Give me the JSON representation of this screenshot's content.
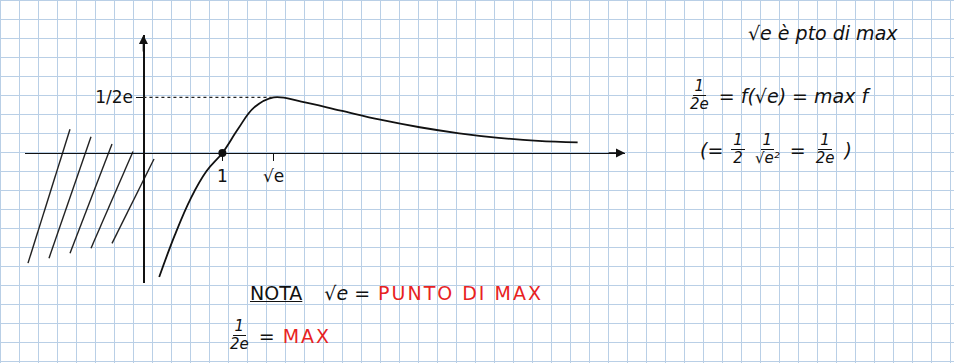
{
  "chart_data": {
    "type": "line",
    "x": [
      0.2,
      0.4,
      0.6,
      0.8,
      1,
      1.2,
      1.4,
      1.65,
      2,
      2.5,
      3,
      3.5,
      4,
      4.5,
      5,
      5.5
    ],
    "values": [
      -0.41,
      -0.27,
      -0.15,
      -0.06,
      0,
      0.08,
      0.15,
      0.184,
      0.17,
      0.14,
      0.11,
      0.085,
      0.065,
      0.05,
      0.04,
      0.035
    ],
    "color": "#111111",
    "xlim": [
      -1.5,
      6.1
    ],
    "ylim": [
      -0.43,
      0.39
    ],
    "xticks": [
      1,
      {
        "value": 1.65,
        "label": "√e"
      }
    ],
    "yticks": [
      {
        "value": 0.184,
        "label": "1/2e"
      }
    ],
    "marked_point": {
      "x": 1,
      "y": 0
    },
    "grid": false
  },
  "notes": [
    {
      "segments": [
        {
          "text": "√e è pto di max"
        }
      ]
    },
    {
      "segments": [
        {
          "num": "1",
          "den": "2e"
        },
        {
          "text": "= f(√e) = max f"
        }
      ]
    },
    {
      "segments": [
        {
          "text": "(="
        },
        {
          "num": "1",
          "den": "2"
        },
        {
          "num": "1",
          "den": "√e²"
        },
        {
          "text": "="
        },
        {
          "num": "1",
          "den": "2e"
        },
        {
          "text": ")"
        }
      ]
    },
    {
      "segments": [
        {
          "text": "NOTA",
          "underline": true
        },
        {
          "text": "√e ="
        },
        {
          "text": "PUNTO DI MAX",
          "color": "#e8231f"
        }
      ]
    },
    {
      "segments": [
        {
          "num": "1",
          "den": "2e"
        },
        {
          "text": "="
        },
        {
          "text": "MAX",
          "color": "#e8231f"
        }
      ]
    }
  ]
}
